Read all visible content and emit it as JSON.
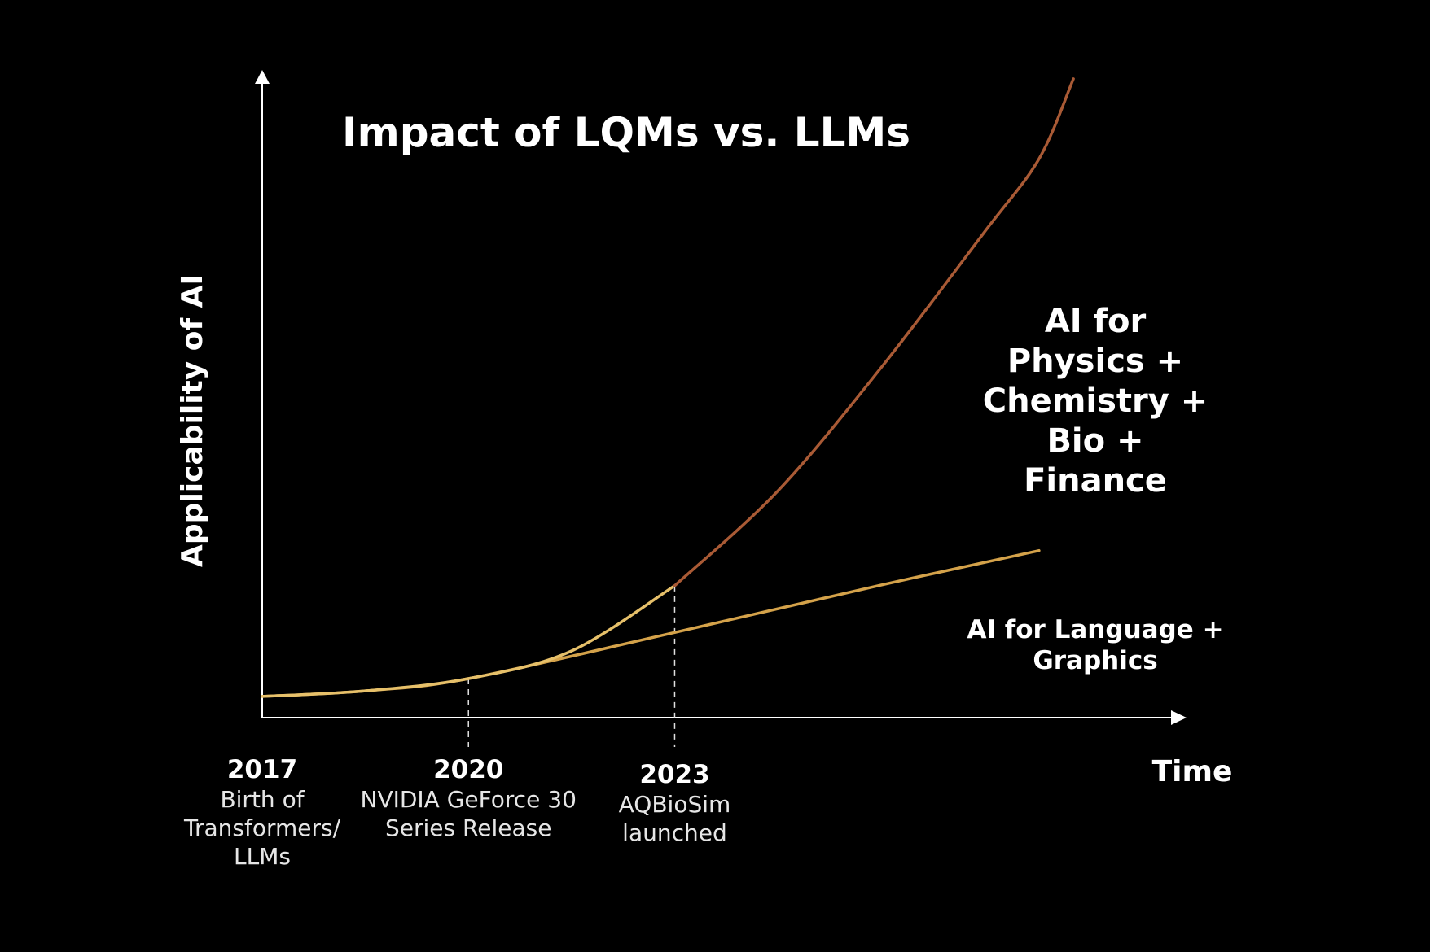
{
  "chart_data": {
    "type": "line",
    "title": "Impact of LQMs vs. LLMs",
    "xlabel": "Time",
    "ylabel": "Applicability of AI",
    "xlim": [
      2017,
      2030.6
    ],
    "ylim": [
      0,
      100
    ],
    "grid": false,
    "ticks": [
      {
        "year": "2017",
        "x": 2017,
        "lines": [
          "Birth of",
          "Transformers/",
          "LLMs"
        ]
      },
      {
        "year": "2020",
        "x": 2020,
        "lines": [
          "NVIDIA GeForce 30",
          "Series Release"
        ]
      },
      {
        "year": "2023",
        "x": 2023,
        "lines": [
          "AQBioSim",
          "launched"
        ]
      }
    ],
    "series": [
      {
        "name": "AI for Language + Graphics",
        "label_lines": [
          "AI for Language +",
          "Graphics"
        ],
        "color": "#d4a24a",
        "points": [
          [
            2017,
            1.6
          ],
          [
            2018.5,
            2.5
          ],
          [
            2020,
            4.5
          ],
          [
            2023,
            12.0
          ],
          [
            2026,
            19.7
          ],
          [
            2028.3,
            25.3
          ]
        ]
      },
      {
        "name": "AI for Physics + Chemistry + Bio + Finance",
        "label_lines": [
          "AI for",
          "Physics +",
          "Chemistry +",
          "Bio +",
          "Finance"
        ],
        "color": "#a95a35",
        "pre_color": "#e6c06a",
        "points": [
          [
            2017,
            1.6
          ],
          [
            2018.5,
            2.5
          ],
          [
            2020,
            4.5
          ],
          [
            2021.5,
            9.0
          ],
          [
            2023,
            19.6
          ],
          [
            2024.5,
            35.0
          ],
          [
            2026,
            55.0
          ],
          [
            2027.5,
            77.0
          ],
          [
            2028.3,
            89.0
          ],
          [
            2028.8,
            102.0
          ]
        ]
      }
    ],
    "branch_point": 2023
  }
}
